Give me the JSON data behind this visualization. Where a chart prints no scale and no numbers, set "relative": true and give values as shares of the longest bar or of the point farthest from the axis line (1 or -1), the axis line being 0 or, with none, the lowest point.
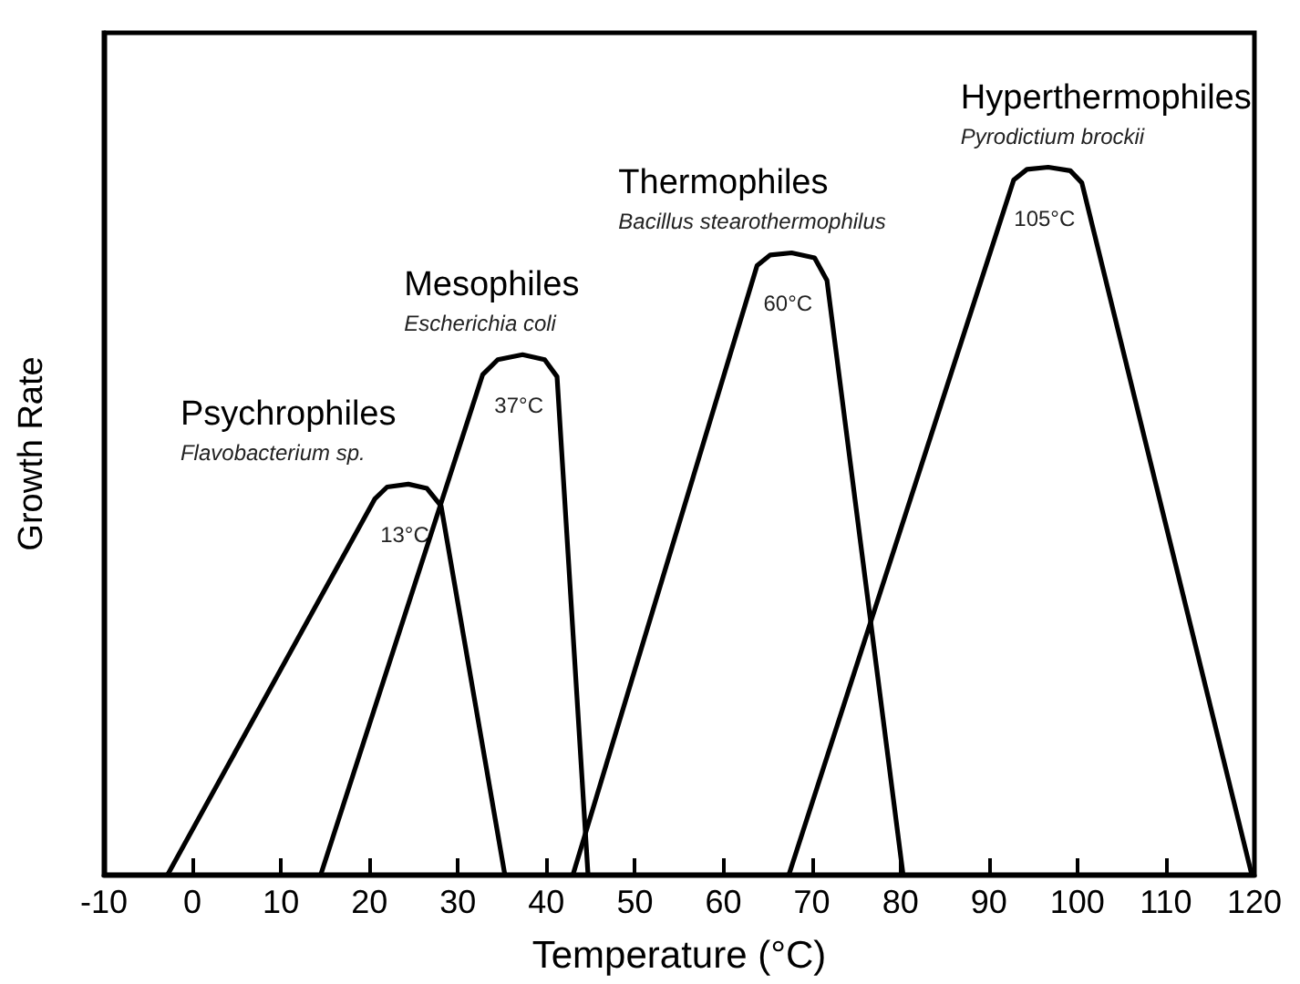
{
  "chart_data": {
    "type": "line",
    "relative": true,
    "xlabel": "Temperature (°C)",
    "ylabel": "Growth Rate",
    "xlim": [
      -10,
      120
    ],
    "xticks": [
      -10,
      0,
      10,
      20,
      30,
      40,
      50,
      60,
      70,
      80,
      90,
      100,
      110,
      120
    ],
    "grid": false,
    "legend": false,
    "marker": "none",
    "line_style": "solid",
    "series": [
      {
        "name": "Psychrophiles",
        "color": "#000000",
        "x": [
          -2.8,
          20.6,
          22,
          24.4,
          26.5,
          28.1,
          35.3
        ],
        "values": [
          0,
          0.531,
          0.548,
          0.552,
          0.546,
          0.521,
          0
        ]
      },
      {
        "name": "Mesophiles",
        "color": "#000000",
        "x": [
          14.5,
          32.8,
          34.5,
          37.3,
          39.8,
          41.2,
          44.7
        ],
        "values": [
          0,
          0.707,
          0.728,
          0.735,
          0.728,
          0.704,
          0
        ]
      },
      {
        "name": "Thermophiles",
        "color": "#000000",
        "x": [
          43.0,
          63.8,
          65.3,
          67.7,
          70.3,
          71.7,
          80.3
        ],
        "values": [
          0,
          0.861,
          0.876,
          0.879,
          0.872,
          0.84,
          0
        ]
      },
      {
        "name": "Hyperthermophiles",
        "color": "#000000",
        "x": [
          67.4,
          92.8,
          94.3,
          96.7,
          99.2,
          100.5,
          119.7
        ],
        "values": [
          0,
          0.982,
          0.997,
          1,
          0.995,
          0.978,
          0
        ]
      }
    ],
    "annotations": [
      "Flavobacterium sp.",
      "Escherichia coli",
      "Bacillus stearothermophilus",
      "Pyrodictium brockii",
      "13°C",
      "37°C",
      "60°C",
      "105°C"
    ]
  }
}
